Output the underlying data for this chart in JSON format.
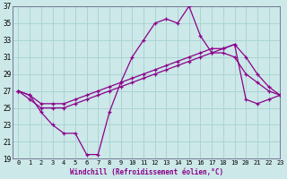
{
  "hours": [
    0,
    1,
    2,
    3,
    4,
    5,
    6,
    7,
    8,
    9,
    10,
    11,
    12,
    13,
    14,
    15,
    16,
    17,
    18,
    19,
    20,
    21,
    22,
    23
  ],
  "temp_main": [
    27,
    26.5,
    24.5,
    23.0,
    22.0,
    22.0,
    19.5,
    19.5,
    24.5,
    28.0,
    31.0,
    33.0,
    35.0,
    35.5,
    35.0,
    37.0,
    33.5,
    31.5,
    31.5,
    31.0,
    29.0,
    28.0,
    27.0,
    26.5
  ],
  "diag_upper": [
    27.0,
    26.5,
    25.5,
    25.5,
    25.5,
    26.0,
    26.5,
    27.0,
    27.5,
    28.0,
    28.5,
    29.0,
    29.5,
    30.0,
    30.5,
    31.0,
    31.5,
    32.0,
    32.0,
    32.5,
    31.0,
    29.0,
    27.5,
    26.5
  ],
  "diag_lower": [
    27.0,
    26.0,
    25.0,
    25.0,
    25.0,
    25.5,
    26.0,
    26.5,
    27.0,
    27.5,
    28.0,
    28.5,
    29.0,
    29.5,
    30.0,
    30.5,
    31.0,
    31.5,
    32.0,
    32.5,
    26.0,
    25.5,
    26.0,
    26.5
  ],
  "color": "#8B008B",
  "bg_color": "#cce8e8",
  "grid_color": "#aad4d4",
  "xlabel": "Windchill (Refroidissement éolien,°C)",
  "ylim": [
    19,
    37
  ],
  "xlim": [
    -0.5,
    23
  ],
  "yticks": [
    19,
    21,
    23,
    25,
    27,
    29,
    31,
    33,
    35,
    37
  ],
  "xticks": [
    0,
    1,
    2,
    3,
    4,
    5,
    6,
    7,
    8,
    9,
    10,
    11,
    12,
    13,
    14,
    15,
    16,
    17,
    18,
    19,
    20,
    21,
    22,
    23
  ]
}
